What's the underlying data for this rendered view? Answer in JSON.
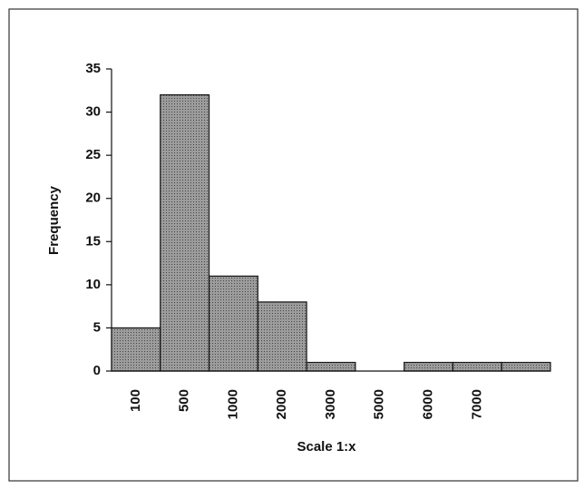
{
  "chart_data": {
    "type": "bar",
    "categories": [
      "100",
      "500",
      "1000",
      "2000",
      "3000",
      "5000",
      "6000",
      "7000",
      null
    ],
    "values": [
      5,
      32,
      11,
      8,
      1,
      0,
      1,
      1,
      1
    ],
    "color": "#9c9c9c",
    "xlabel": "Scale 1:x",
    "ylabel": "Frequency",
    "ylim": [
      0,
      35
    ],
    "yticks": [
      0,
      5,
      10,
      15,
      20,
      25,
      30,
      35
    ],
    "grid": false
  }
}
